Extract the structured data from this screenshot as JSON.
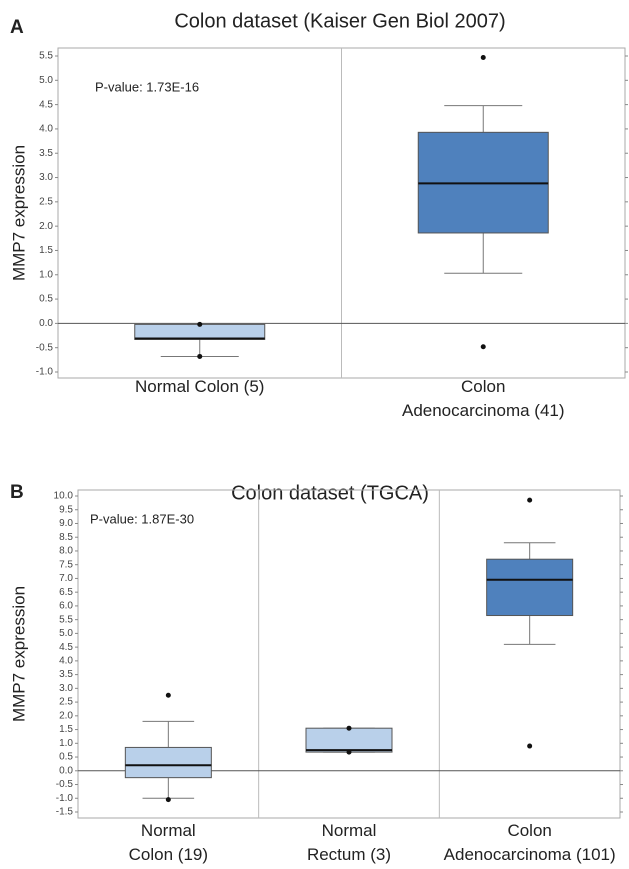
{
  "chart_data": [
    {
      "type": "box",
      "panel": "A",
      "title": "Colon dataset (Kaiser Gen Biol 2007)",
      "annotation": "P-value:  1.73E-16",
      "y_label": "MMP7 expression",
      "categories": [
        "Normal Colon (5)",
        "Colon\nAdenocarcinoma (41)"
      ],
      "colors": [
        "#b9d0ea",
        "#4f81bd"
      ],
      "min": [
        -0.68,
        -0.48
      ],
      "whisker_low": [
        -0.68,
        1.03
      ],
      "q1": [
        -0.33,
        1.86
      ],
      "median": [
        -0.31,
        2.88
      ],
      "q3": [
        -0.02,
        3.93
      ],
      "whisker_high": [
        -0.02,
        4.48
      ],
      "max": [
        -0.02,
        5.47
      ],
      "ylim": [
        -1,
        5.5
      ],
      "yticks": [
        {
          "value": -1,
          "label": "-1.0"
        },
        -0.5,
        {
          "value": 0,
          "label": "0.0"
        },
        0.5,
        {
          "value": 1,
          "label": "1.0"
        },
        1.5,
        {
          "value": 2,
          "label": "2.0"
        },
        2.5,
        {
          "value": 3,
          "label": "3.0"
        },
        3.5,
        {
          "value": 4,
          "label": "4.0"
        },
        4.5,
        {
          "value": 5,
          "label": "5.0"
        },
        5.5
      ],
      "zero_line": true
    },
    {
      "type": "box",
      "panel": "B",
      "title": "Colon dataset (TGCA)",
      "annotation": "P-value:  1.87E-30",
      "y_label": "MMP7 expression",
      "categories": [
        "Normal\nColon (19)",
        "Normal\nRectum (3)",
        "Colon\nAdenocarcinoma (101)"
      ],
      "colors": [
        "#b9d0ea",
        "#b9d0ea",
        "#4f81bd"
      ],
      "min": [
        -1.05,
        0.68,
        0.9
      ],
      "whisker_low": [
        -1.0,
        0.68,
        4.6
      ],
      "q1": [
        -0.25,
        0.68,
        5.65
      ],
      "median": [
        0.2,
        0.75,
        6.95
      ],
      "q3": [
        0.85,
        1.55,
        7.7
      ],
      "whisker_high": [
        1.8,
        1.55,
        8.3
      ],
      "max": [
        2.75,
        1.55,
        9.85
      ],
      "ylim": [
        -1.5,
        10
      ],
      "yticks": [
        -1.5,
        {
          "value": -1,
          "label": "-1.0"
        },
        -0.5,
        {
          "value": 0,
          "label": "0.0"
        },
        0.5,
        {
          "value": 1,
          "label": "1.0"
        },
        1.5,
        {
          "value": 2,
          "label": "2.0"
        },
        2.5,
        {
          "value": 3,
          "label": "3.0"
        },
        3.5,
        {
          "value": 4,
          "label": "4.0"
        },
        4.5,
        {
          "value": 5,
          "label": "5.0"
        },
        5.5,
        {
          "value": 6,
          "label": "6.0"
        },
        6.5,
        {
          "value": 7,
          "label": "7.0"
        },
        7.5,
        {
          "value": 8,
          "label": "8.0"
        },
        8.5,
        {
          "value": 9,
          "label": "9.0"
        },
        9.5,
        {
          "value": 10,
          "label": "10.0"
        }
      ],
      "zero_line": true
    }
  ]
}
